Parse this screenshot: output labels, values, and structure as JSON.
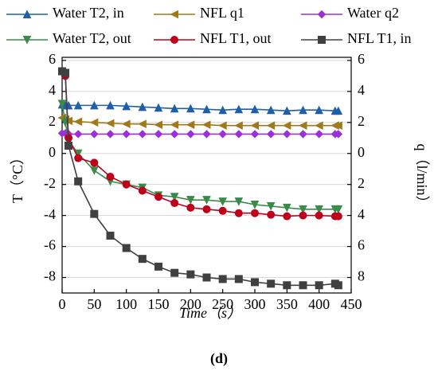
{
  "chart_data": {
    "type": "line",
    "caption": "(d)",
    "xlabel": "Time（s）",
    "ylabel": "T（°C）",
    "y2label": "q（l/min）",
    "x": [
      0,
      5,
      10,
      25,
      50,
      75,
      100,
      125,
      150,
      175,
      200,
      225,
      250,
      275,
      300,
      325,
      350,
      375,
      400,
      425,
      430
    ],
    "series": [
      {
        "name": "Water T2, in",
        "color": "#1f5fa8",
        "marker": "triangle-up",
        "values": [
          3.15,
          3.1,
          3.1,
          3.1,
          3.1,
          3.1,
          3.05,
          3.0,
          2.95,
          2.9,
          2.9,
          2.85,
          2.8,
          2.85,
          2.85,
          2.8,
          2.75,
          2.8,
          2.8,
          2.75,
          2.75
        ]
      },
      {
        "name": "NFL q1",
        "color": "#a07a1a",
        "marker": "triangle-left",
        "axis": "y2",
        "values": [
          2.3,
          2.2,
          2.1,
          2.05,
          2.0,
          1.95,
          1.9,
          1.9,
          1.85,
          1.85,
          1.85,
          1.85,
          1.8,
          1.8,
          1.8,
          1.8,
          1.8,
          1.8,
          1.8,
          1.8,
          1.8
        ]
      },
      {
        "name": "Water q2",
        "color": "#9b30d9",
        "marker": "diamond",
        "axis": "y2",
        "values": [
          1.3,
          1.3,
          1.25,
          1.25,
          1.25,
          1.25,
          1.25,
          1.25,
          1.25,
          1.25,
          1.25,
          1.25,
          1.25,
          1.25,
          1.25,
          1.25,
          1.25,
          1.25,
          1.25,
          1.25,
          1.25
        ]
      },
      {
        "name": "Water T2, out",
        "color": "#3a8a4a",
        "marker": "triangle-down",
        "values": [
          3.2,
          2.0,
          0.8,
          0.0,
          -1.1,
          -1.8,
          -2.0,
          -2.2,
          -2.7,
          -2.8,
          -3.0,
          -3.0,
          -3.1,
          -3.1,
          -3.3,
          -3.4,
          -3.5,
          -3.6,
          -3.6,
          -3.6,
          -3.6
        ]
      },
      {
        "name": "NFL T1, out",
        "color": "#c0001a",
        "marker": "circle",
        "values": [
          5.3,
          5.0,
          1.0,
          -0.3,
          -0.6,
          -1.5,
          -2.0,
          -2.4,
          -2.8,
          -3.2,
          -3.5,
          -3.6,
          -3.7,
          -3.85,
          -3.85,
          -3.95,
          -4.05,
          -4.0,
          -4.0,
          -4.05,
          -4.05
        ]
      },
      {
        "name": "NFL T1, in",
        "color": "#404040",
        "marker": "square",
        "values": [
          5.3,
          5.2,
          0.5,
          -1.8,
          -3.9,
          -5.3,
          -6.1,
          -6.8,
          -7.3,
          -7.7,
          -7.8,
          -8.0,
          -8.1,
          -8.1,
          -8.3,
          -8.4,
          -8.5,
          -8.5,
          -8.5,
          -8.4,
          -8.5
        ]
      }
    ],
    "xlim": [
      0,
      450
    ],
    "xticks": [
      0,
      50,
      100,
      150,
      200,
      250,
      300,
      350,
      400,
      450
    ],
    "ylim": [
      -9,
      6.2
    ],
    "yticks": [
      -8,
      -6,
      -4,
      -2,
      0,
      2,
      4,
      6
    ],
    "y2lim": [
      -9,
      6.2
    ],
    "y2ticks": [
      {
        "value": -8,
        "label": "8"
      },
      {
        "value": -6,
        "label": "6"
      },
      {
        "value": -4,
        "label": "4"
      },
      {
        "value": -2,
        "label": "2"
      },
      0,
      2,
      4,
      6
    ],
    "grid": true
  }
}
